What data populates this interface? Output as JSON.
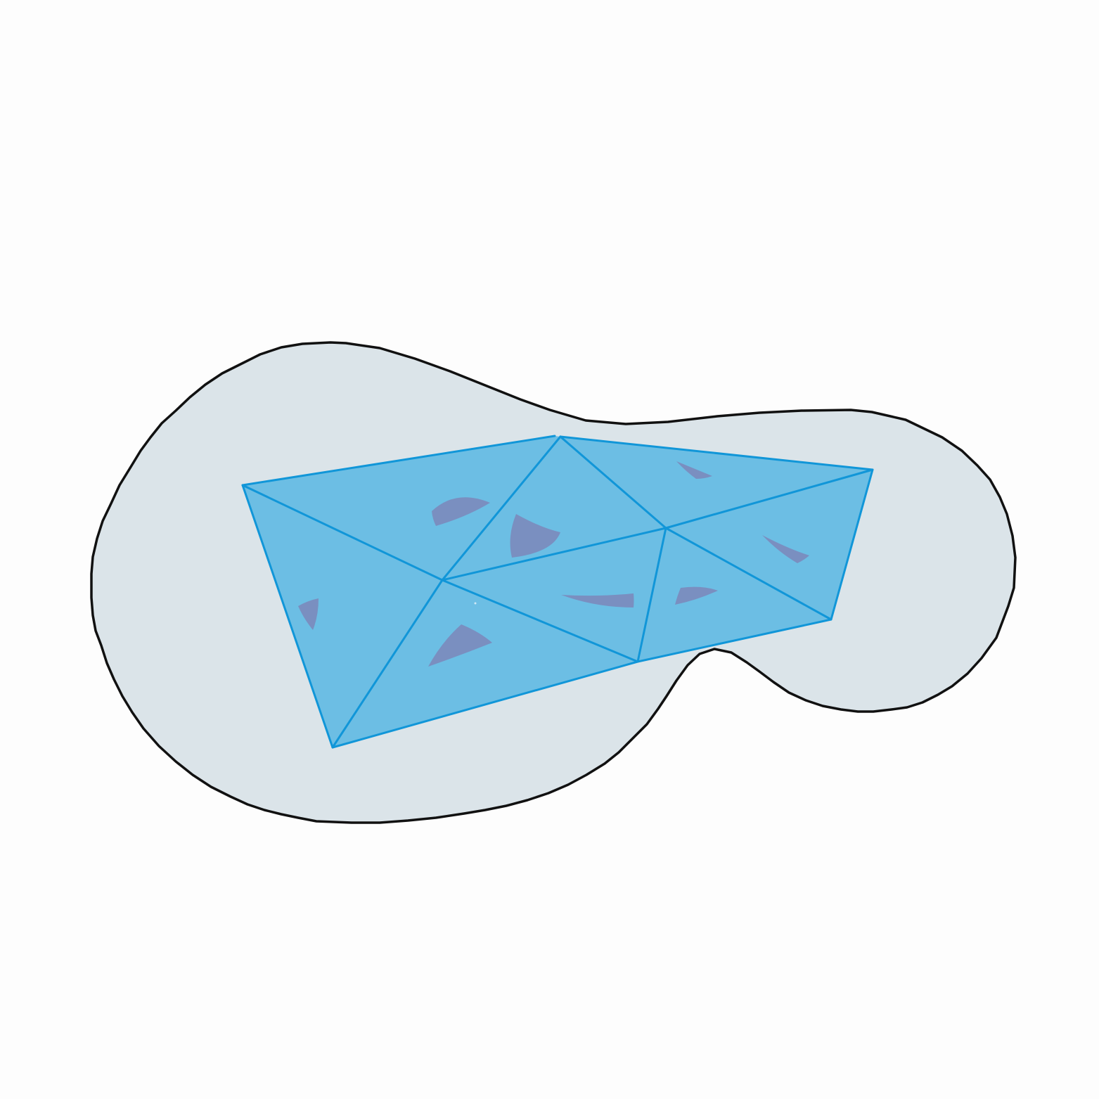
{
  "colors": {
    "background": "#fdfdfd",
    "region_fill": "#dbe4e9",
    "region_stroke": "#111111",
    "mesh_fill": "#6cbee4",
    "mesh_stroke": "#1196d8",
    "wedge_fill": "#7a8fc0"
  },
  "diagram": {
    "description_elements": [
      "outer-region",
      "triangle-mesh",
      "angle-wedges"
    ]
  }
}
